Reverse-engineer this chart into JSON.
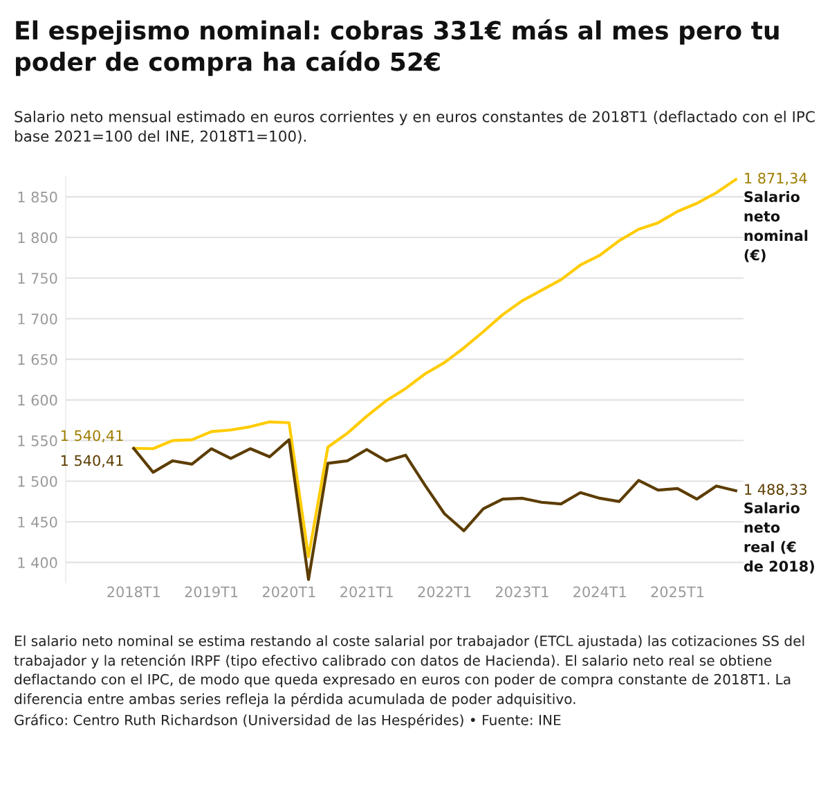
{
  "chart_data": {
    "type": "line",
    "title": "El espejismo nominal: cobras 331€ más al mes pero tu poder de compra ha caído 52€",
    "subtitle": "Salario neto mensual estimado en euros corrientes y en euros constantes de 2018T1 (deflactado con el IPC base 2021=100 del INE, 2018T1=100).",
    "categories": [
      "2018T1",
      null,
      null,
      null,
      "2019T1",
      null,
      null,
      null,
      "2020T1",
      null,
      null,
      null,
      "2021T1",
      null,
      null,
      null,
      "2022T1",
      null,
      null,
      null,
      "2023T1",
      null,
      null,
      null,
      "2024T1",
      null,
      null,
      null,
      "2025T1",
      null,
      null,
      null
    ],
    "series": [
      {
        "name": "Salario neto nominal (€)",
        "color": "#ffcc00",
        "values": [
          1540.41,
          1540,
          1550,
          1551,
          1561,
          1563,
          1567,
          1573,
          1572,
          1407,
          1542,
          1559,
          1580,
          1599,
          1614,
          1632,
          1646,
          1664,
          1684,
          1705,
          1722,
          1735,
          1748,
          1766,
          1778,
          1796,
          1810,
          1818,
          1832,
          1842,
          1855,
          1871.34
        ],
        "value_labels": [
          "1 540,41",
          null,
          null,
          null,
          null,
          null,
          null,
          null,
          null,
          null,
          null,
          null,
          null,
          null,
          null,
          null,
          null,
          null,
          null,
          null,
          null,
          null,
          null,
          null,
          null,
          null,
          null,
          null,
          null,
          null,
          null,
          "1 871,34"
        ]
      },
      {
        "name": "Salario neto real (€ de 2018)",
        "color": "#5c3d00",
        "values": [
          1540.41,
          1511,
          1525,
          1521,
          1540,
          1528,
          1540,
          1530,
          1551,
          1379,
          1522,
          1525,
          1539,
          1525,
          1532,
          1495,
          1460,
          1439,
          1466,
          1478,
          1479,
          1474,
          1472,
          1486,
          1479,
          1475,
          1501,
          1489,
          1491,
          1478,
          1494,
          1488.33
        ],
        "value_labels": [
          "1 540,41",
          null,
          null,
          null,
          null,
          null,
          null,
          null,
          null,
          null,
          null,
          null,
          null,
          null,
          null,
          null,
          null,
          null,
          null,
          null,
          null,
          null,
          null,
          null,
          null,
          null,
          null,
          null,
          null,
          null,
          null,
          "1 488,33"
        ]
      }
    ],
    "ylim": [
      1375,
      1875
    ],
    "yticks": [
      {
        "value": 1400,
        "label": "1 400"
      },
      {
        "value": 1450,
        "label": "1 450"
      },
      {
        "value": 1500,
        "label": "1 500"
      },
      {
        "value": 1550,
        "label": "1 550"
      },
      {
        "value": 1600,
        "label": "1 600"
      },
      {
        "value": 1650,
        "label": "1 650"
      },
      {
        "value": 1700,
        "label": "1 700"
      },
      {
        "value": 1750,
        "label": "1 750"
      },
      {
        "value": 1800,
        "label": "1 800"
      },
      {
        "value": 1850,
        "label": "1 850"
      }
    ],
    "grid": "y",
    "legend": false,
    "annotations": [
      "El salario neto nominal se estima restando al coste salarial por trabajador (ETCL ajustada) las cotizaciones SS del trabajador y la retención IRPF (tipo efectivo calibrado con datos de Hacienda). El salario neto real se obtiene deflactando con el IPC, de modo que queda expresado en euros con poder de compra constante de 2018T1. La diferencia entre ambas series refleja la pérdida acumulada de poder adquisitivo.",
      "Gráfico: Centro Ruth Richardson (Universidad de las Hespérides) • Fuente: INE"
    ]
  }
}
